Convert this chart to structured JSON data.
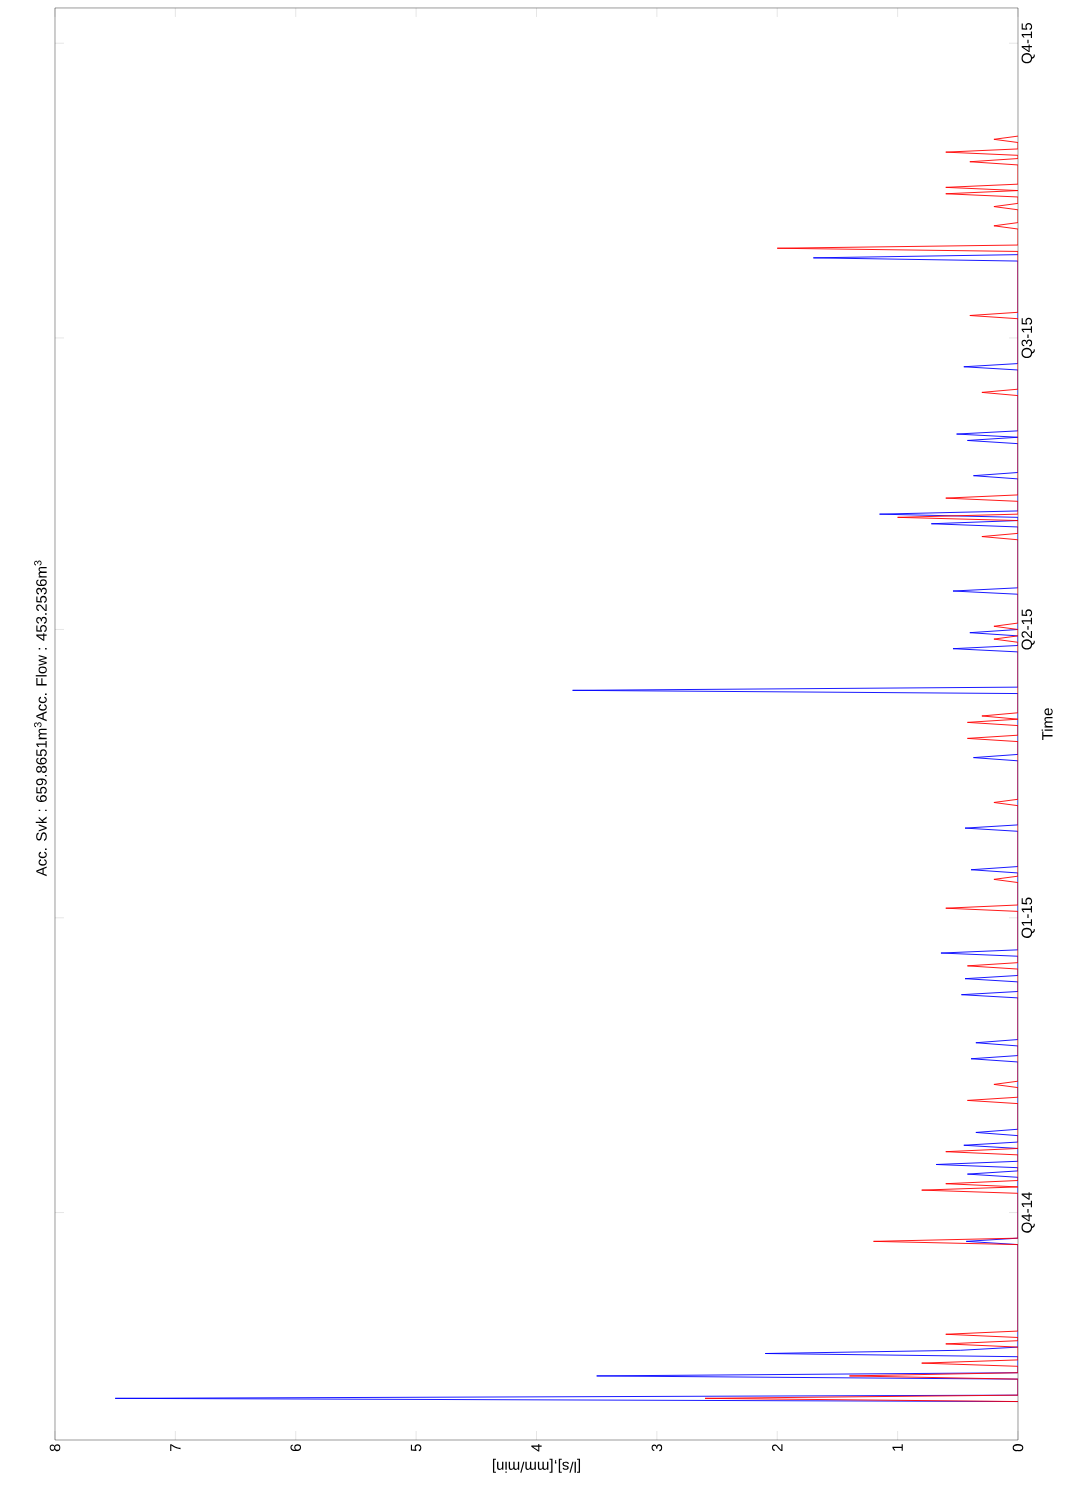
{
  "chart_data": {
    "type": "line",
    "title": "Acc. Svk : 659.8651m$^{3}$Acc. Flow : 453.2536m$^{3}$",
    "orientation": "horizontal",
    "ylabel": "Time",
    "xlabel": "[l/s],[mm/min]",
    "ylim": [
      "2014-07-22",
      "2015-10-12"
    ],
    "yticks": [
      {
        "value": "2014-10-01",
        "label": "Q4-14"
      },
      {
        "value": "2015-01-01",
        "label": "Q1-15"
      },
      {
        "value": "2015-04-01",
        "label": "Q2-15"
      },
      {
        "value": "2015-07-01",
        "label": "Q3-15"
      },
      {
        "value": "2015-10-01",
        "label": "Q4-15"
      }
    ],
    "xlim": [
      8,
      0
    ],
    "xticks": [
      0,
      1,
      2,
      3,
      4,
      5,
      6,
      7,
      8
    ],
    "grid": false,
    "legend": false,
    "marker": "none",
    "line_style": "solid",
    "series": [
      {
        "color": "#0000ff",
        "x": [
          "2014-08-03",
          "2014-08-04",
          "2014-08-05",
          "2014-08-10",
          "2014-08-11",
          "2014-08-12",
          "2014-08-17",
          "2014-08-18",
          "2014-08-19",
          "2014-08-20",
          "2014-09-21",
          "2014-09-22",
          "2014-09-23",
          "2014-10-12",
          "2014-10-13",
          "2014-10-14",
          "2014-10-15",
          "2014-10-16",
          "2014-10-17",
          "2014-10-21",
          "2014-10-22",
          "2014-10-23",
          "2014-10-25",
          "2014-10-26",
          "2014-10-27",
          "2014-11-17",
          "2014-11-18",
          "2014-11-19",
          "2014-11-22",
          "2014-11-23",
          "2014-11-24",
          "2014-12-07",
          "2014-12-08",
          "2014-12-09",
          "2014-12-12",
          "2014-12-13",
          "2014-12-14",
          "2014-12-20",
          "2014-12-21",
          "2014-12-22",
          "2015-01-15",
          "2015-01-16",
          "2015-01-17",
          "2015-01-28",
          "2015-01-29",
          "2015-01-30",
          "2015-02-19",
          "2015-02-20",
          "2015-02-21",
          "2015-03-12",
          "2015-03-13",
          "2015-03-14",
          "2015-03-25",
          "2015-03-26",
          "2015-03-27",
          "2015-03-30",
          "2015-03-31",
          "2015-04-01",
          "2015-04-12",
          "2015-04-13",
          "2015-04-14",
          "2015-05-03",
          "2015-05-04",
          "2015-05-05",
          "2015-05-06",
          "2015-05-07",
          "2015-05-08",
          "2015-05-18",
          "2015-05-19",
          "2015-05-20",
          "2015-05-29",
          "2015-05-30",
          "2015-05-31",
          "2015-06-01",
          "2015-06-02",
          "2015-06-21",
          "2015-06-22",
          "2015-06-23",
          "2015-07-25",
          "2015-07-26",
          "2015-07-27"
        ],
        "values": [
          0,
          7.5,
          0,
          0,
          3.5,
          0,
          0,
          2.1,
          0.48,
          0,
          0,
          0.43,
          0,
          0,
          0.42,
          0,
          0,
          0.68,
          0,
          0,
          0.45,
          0,
          0,
          0.35,
          0,
          0,
          0.39,
          0,
          0,
          0.35,
          0,
          0,
          0.47,
          0,
          0,
          0.44,
          0,
          0,
          0.64,
          0,
          0,
          0.39,
          0,
          0,
          0.44,
          0,
          0,
          0.37,
          0,
          0,
          3.7,
          0,
          0,
          0.54,
          0,
          0,
          0.4,
          0,
          0,
          0.54,
          0,
          0,
          0.72,
          0,
          0,
          1.15,
          0,
          0,
          0.37,
          0,
          0,
          0.42,
          0,
          0.51,
          0,
          0,
          0.45,
          0,
          0,
          1.7,
          0
        ]
      },
      {
        "color": "#ff0000",
        "x": [
          "2014-08-03",
          "2014-08-04",
          "2014-08-05",
          "2014-08-10",
          "2014-08-11",
          "2014-08-12",
          "2014-08-14",
          "2014-08-15",
          "2014-08-16",
          "2014-08-20",
          "2014-08-21",
          "2014-08-22",
          "2014-08-23",
          "2014-08-24",
          "2014-08-25",
          "2014-09-21",
          "2014-09-22",
          "2014-09-23",
          "2014-10-07",
          "2014-10-08",
          "2014-10-09",
          "2014-10-10",
          "2014-10-11",
          "2014-10-19",
          "2014-10-20",
          "2014-10-21",
          "2014-11-04",
          "2014-11-05",
          "2014-11-06",
          "2014-11-09",
          "2014-11-10",
          "2014-11-11",
          "2014-12-16",
          "2014-12-17",
          "2014-12-18",
          "2015-01-03",
          "2015-01-04",
          "2015-01-05",
          "2015-01-12",
          "2015-01-13",
          "2015-01-14",
          "2015-02-05",
          "2015-02-06",
          "2015-02-07",
          "2015-02-25",
          "2015-02-26",
          "2015-02-27",
          "2015-03-02",
          "2015-03-03",
          "2015-03-04",
          "2015-03-05",
          "2015-03-06",
          "2015-03-28",
          "2015-03-29",
          "2015-03-30",
          "2015-04-01",
          "2015-04-02",
          "2015-04-03",
          "2015-04-29",
          "2015-04-30",
          "2015-05-01",
          "2015-05-05",
          "2015-05-06",
          "2015-05-07",
          "2015-05-11",
          "2015-05-12",
          "2015-05-13",
          "2015-06-13",
          "2015-06-14",
          "2015-06-15",
          "2015-07-07",
          "2015-07-08",
          "2015-07-09",
          "2015-07-28",
          "2015-07-29",
          "2015-07-30",
          "2015-08-04",
          "2015-08-05",
          "2015-08-06",
          "2015-08-10",
          "2015-08-11",
          "2015-08-12",
          "2015-08-14",
          "2015-08-15",
          "2015-08-16",
          "2015-08-17",
          "2015-08-18",
          "2015-08-24",
          "2015-08-25",
          "2015-08-26",
          "2015-08-27",
          "2015-08-28",
          "2015-08-29",
          "2015-08-31",
          "2015-09-01",
          "2015-09-02"
        ],
        "values": [
          0,
          2.6,
          0,
          0,
          1.4,
          0,
          0,
          0.8,
          0,
          0,
          0.6,
          0,
          0,
          0.6,
          0,
          0,
          1.2,
          0,
          0,
          0.8,
          0,
          0.6,
          0,
          0,
          0.6,
          0,
          0,
          0.42,
          0,
          0,
          0.2,
          0,
          0,
          0.42,
          0,
          0,
          0.6,
          0,
          0,
          0.2,
          0,
          0,
          0.2,
          0,
          0,
          0.42,
          0,
          0,
          0.42,
          0,
          0.3,
          0,
          0,
          0.2,
          0,
          0,
          0.2,
          0,
          0,
          0.3,
          0,
          0,
          1.0,
          0,
          0,
          0.6,
          0,
          0,
          0.3,
          0,
          0,
          0.4,
          0,
          0,
          2.0,
          0,
          0,
          0.2,
          0,
          0,
          0.2,
          0,
          0,
          0.6,
          0,
          0.6,
          0,
          0,
          0.4,
          0,
          0,
          0.6,
          0,
          0,
          0.2,
          0
        ]
      }
    ]
  }
}
